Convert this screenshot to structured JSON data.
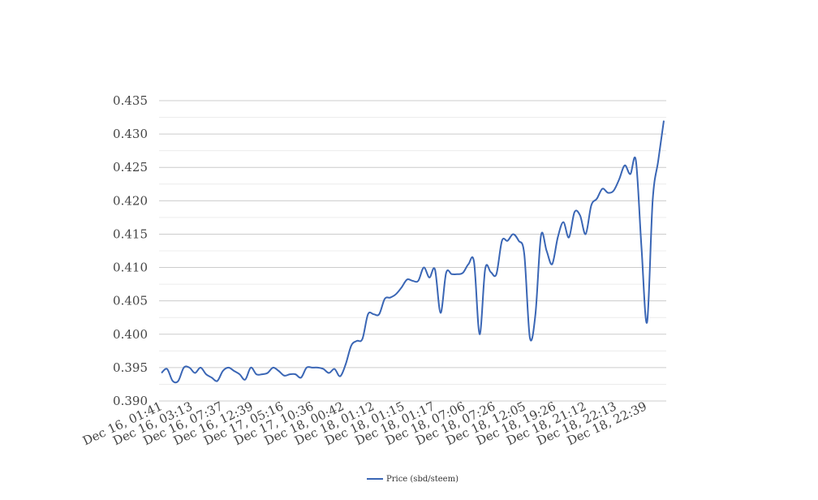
{
  "chart_data": {
    "type": "line",
    "title": "",
    "xlabel": "",
    "ylabel": "",
    "ylim": [
      0.39,
      0.435
    ],
    "yticks": [
      "0.390",
      "0.395",
      "0.400",
      "0.405",
      "0.410",
      "0.415",
      "0.420",
      "0.425",
      "0.430",
      "0.435"
    ],
    "xtick_labels": [
      "Dec 16, 01:41",
      "Dec 16, 03:13",
      "Dec 16, 07:37",
      "Dec 16, 12:39",
      "Dec 17, 05:16",
      "Dec 17, 10:36",
      "Dec 18, 00:42",
      "Dec 18, 01:12",
      "Dec 18, 01:15",
      "Dec 18, 01:17",
      "Dec 18, 07:06",
      "Dec 18, 07:26",
      "Dec 18, 12:05",
      "Dec 18, 19:26",
      "Dec 18, 21:12",
      "Dec 18, 22:13",
      "Dec 18, 22:39"
    ],
    "grid": true,
    "legend_position": "bottom",
    "series": [
      {
        "name": "Price (sbd/steem)",
        "color": "#3a66b5",
        "values": [
          0.3942,
          0.3948,
          0.393,
          0.393,
          0.395,
          0.395,
          0.3942,
          0.395,
          0.394,
          0.3935,
          0.393,
          0.3945,
          0.395,
          0.3945,
          0.394,
          0.3932,
          0.395,
          0.394,
          0.394,
          0.3942,
          0.395,
          0.3945,
          0.3938,
          0.394,
          0.394,
          0.3935,
          0.395,
          0.395,
          0.395,
          0.3948,
          0.3942,
          0.3948,
          0.3937,
          0.3955,
          0.3983,
          0.399,
          0.3993,
          0.403,
          0.403,
          0.403,
          0.4053,
          0.4055,
          0.406,
          0.407,
          0.4082,
          0.408,
          0.408,
          0.41,
          0.4085,
          0.4097,
          0.4032,
          0.4092,
          0.409,
          0.409,
          0.4092,
          0.4105,
          0.4108,
          0.4,
          0.4098,
          0.4093,
          0.409,
          0.414,
          0.414,
          0.415,
          0.414,
          0.412,
          0.3995,
          0.403,
          0.4148,
          0.4125,
          0.4105,
          0.4145,
          0.4168,
          0.4145,
          0.4183,
          0.4178,
          0.415,
          0.4193,
          0.4203,
          0.4218,
          0.4212,
          0.4215,
          0.4232,
          0.4253,
          0.424,
          0.426,
          0.413,
          0.4018,
          0.42,
          0.426,
          0.432
        ]
      }
    ]
  }
}
